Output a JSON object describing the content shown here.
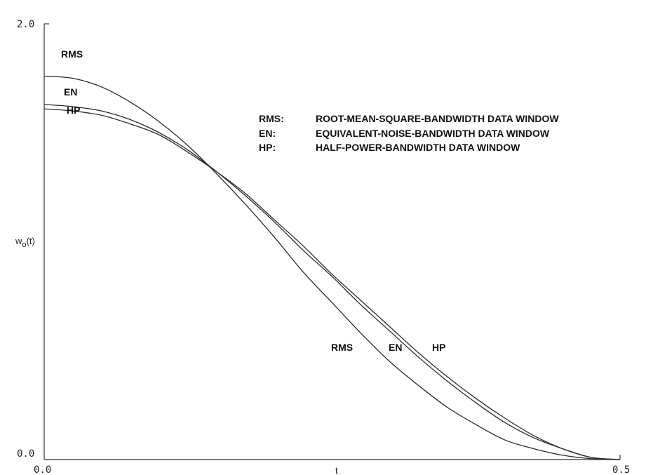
{
  "chart_data": {
    "type": "line",
    "xlabel": "t",
    "ylabel": "w_o(t)",
    "xlim": [
      0.0,
      0.5
    ],
    "ylim": [
      0.0,
      2.0
    ],
    "x_ticks": [
      "0.0",
      "0.5"
    ],
    "y_ticks": [
      "0.0",
      "2.0"
    ],
    "grid": false,
    "legend_position": "top-right",
    "legend": [
      {
        "key": "RMS:",
        "desc": "ROOT-MEAN-SQUARE-BANDWIDTH DATA WINDOW"
      },
      {
        "key": "EN:",
        "desc": "EQUIVALENT-NOISE-BANDWIDTH DATA WINDOW"
      },
      {
        "key": "HP:",
        "desc": "HALF-POWER-BANDWIDTH DATA WINDOW"
      }
    ],
    "x": [
      0.0,
      0.025,
      0.05,
      0.075,
      0.1,
      0.125,
      0.15,
      0.175,
      0.2,
      0.225,
      0.25,
      0.275,
      0.3,
      0.325,
      0.35,
      0.375,
      0.4,
      0.425,
      0.45,
      0.475,
      0.5
    ],
    "series": [
      {
        "name": "RMS",
        "values": [
          1.76,
          1.75,
          1.71,
          1.64,
          1.55,
          1.44,
          1.31,
          1.17,
          1.02,
          0.86,
          0.72,
          0.58,
          0.45,
          0.34,
          0.24,
          0.16,
          0.09,
          0.05,
          0.02,
          0.004,
          0.0
        ]
      },
      {
        "name": "EN",
        "values": [
          1.63,
          1.62,
          1.6,
          1.56,
          1.5,
          1.42,
          1.32,
          1.21,
          1.09,
          0.96,
          0.84,
          0.71,
          0.59,
          0.47,
          0.36,
          0.26,
          0.17,
          0.1,
          0.05,
          0.01,
          0.0
        ]
      },
      {
        "name": "HP",
        "values": [
          1.61,
          1.6,
          1.58,
          1.54,
          1.49,
          1.41,
          1.32,
          1.22,
          1.1,
          0.98,
          0.85,
          0.73,
          0.61,
          0.49,
          0.38,
          0.28,
          0.19,
          0.11,
          0.05,
          0.01,
          0.0
        ]
      }
    ],
    "curve_labels": [
      {
        "text": "RMS",
        "series": "RMS",
        "at": "start"
      },
      {
        "text": "EN",
        "series": "EN",
        "at": "start"
      },
      {
        "text": "HP",
        "series": "HP",
        "at": "start"
      },
      {
        "text": "RMS",
        "series": "RMS",
        "at": "middle"
      },
      {
        "text": "EN",
        "series": "EN",
        "at": "middle"
      },
      {
        "text": "HP",
        "series": "HP",
        "at": "middle"
      }
    ]
  }
}
